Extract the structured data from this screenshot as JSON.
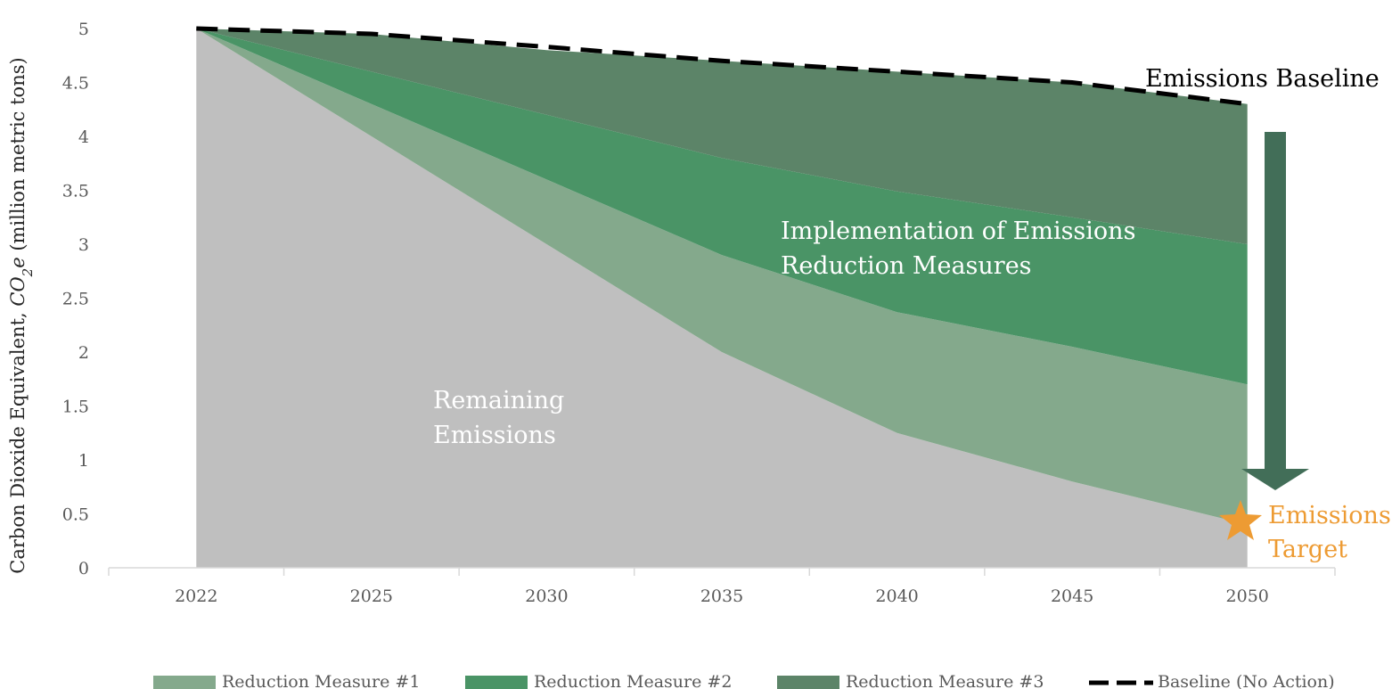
{
  "chart_data": {
    "type": "area",
    "categories": [
      "2022",
      "2025",
      "2030",
      "2035",
      "2040",
      "2045",
      "2050"
    ],
    "ylabel_prefix": "Carbon Dioxide Equivalent, ",
    "ylabel_co": "CO",
    "ylabel_sub": "2",
    "ylabel_e": "e",
    "ylabel_suffix": " (million metric tons)",
    "xlabel": "",
    "ylim": [
      0,
      5
    ],
    "y_ticks": [
      "0",
      "0.5",
      "1",
      "1.5",
      "2",
      "2.5",
      "3",
      "3.5",
      "4",
      "4.5",
      "5"
    ],
    "stacked": true,
    "series": [
      {
        "name": "",
        "role": "remaining",
        "color": "#BFBFBF",
        "values": [
          5.0,
          4.0,
          3.0,
          2.0,
          1.25,
          0.8,
          0.4
        ]
      },
      {
        "name": "Reduction Measure #1",
        "color": "#84A98C",
        "values": [
          0.0,
          0.3,
          0.6,
          0.9,
          1.12,
          1.25,
          1.3
        ]
      },
      {
        "name": "Reduction Measure #2",
        "color": "#4A9466",
        "values": [
          0.0,
          0.3,
          0.6,
          0.9,
          1.12,
          1.2,
          1.3
        ]
      },
      {
        "name": "Reduction Measure #3",
        "color": "#5C8468",
        "values": [
          0.0,
          0.35,
          0.6,
          0.9,
          1.11,
          1.25,
          1.3
        ]
      }
    ],
    "baseline": {
      "name": "Baseline (No Action)",
      "color": "#000000",
      "values": [
        5.0,
        4.95,
        4.83,
        4.7,
        4.6,
        4.5,
        4.3
      ]
    },
    "grid": false,
    "legend_position": "bottom",
    "annotations": {
      "remaining_line1": "Remaining",
      "remaining_line2": "Emissions",
      "implementation_line1": "Implementation of Emissions",
      "implementation_line2": "Reduction Measures",
      "baseline_label": "Emissions Baseline",
      "target_line1": "Emissions",
      "target_line2": "Target"
    },
    "colors": {
      "arrow": "#426E58",
      "target_star": "#ED9B33",
      "axis": "#D9D9D9"
    }
  }
}
